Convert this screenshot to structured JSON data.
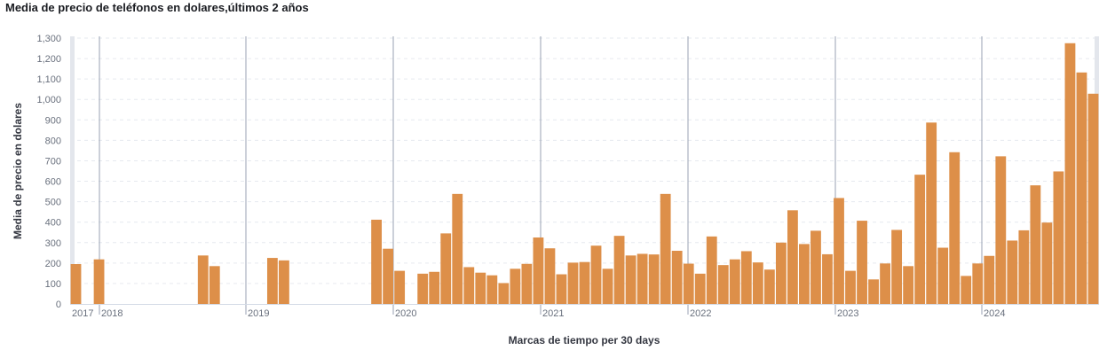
{
  "chart_data": {
    "type": "bar",
    "title": "Media de precio de teléfonos en dolares,últimos 2 años",
    "xlabel": "Marcas de tiempo per 30 days",
    "ylabel": "Media de precio en dolares",
    "ylim": [
      0,
      1300
    ],
    "yticks": [
      "0",
      "100",
      "200",
      "300",
      "400",
      "500",
      "600",
      "700",
      "800",
      "900",
      "1,000",
      "1,100",
      "1,200",
      "1,300"
    ],
    "grid": true,
    "bar_color": "#dd8f49",
    "year_labels": [
      "2017",
      "2018",
      "2019",
      "2020",
      "2021",
      "2022",
      "2023",
      "2024"
    ],
    "values": [
      195,
      null,
      218,
      null,
      null,
      null,
      null,
      null,
      null,
      null,
      null,
      237,
      185,
      null,
      null,
      null,
      null,
      225,
      213,
      null,
      null,
      null,
      null,
      null,
      null,
      null,
      412,
      270,
      162,
      null,
      148,
      157,
      345,
      538,
      180,
      153,
      140,
      102,
      172,
      196,
      325,
      272,
      145,
      202,
      205,
      285,
      172,
      333,
      237,
      245,
      242,
      538,
      260,
      197,
      148,
      330,
      190,
      218,
      258,
      203,
      168,
      300,
      458,
      293,
      358,
      243,
      518,
      162,
      407,
      120,
      198,
      362,
      185,
      632,
      887,
      275,
      742,
      137,
      198,
      235,
      722,
      310,
      360,
      580,
      398,
      648,
      1275,
      1132,
      1028
    ]
  }
}
